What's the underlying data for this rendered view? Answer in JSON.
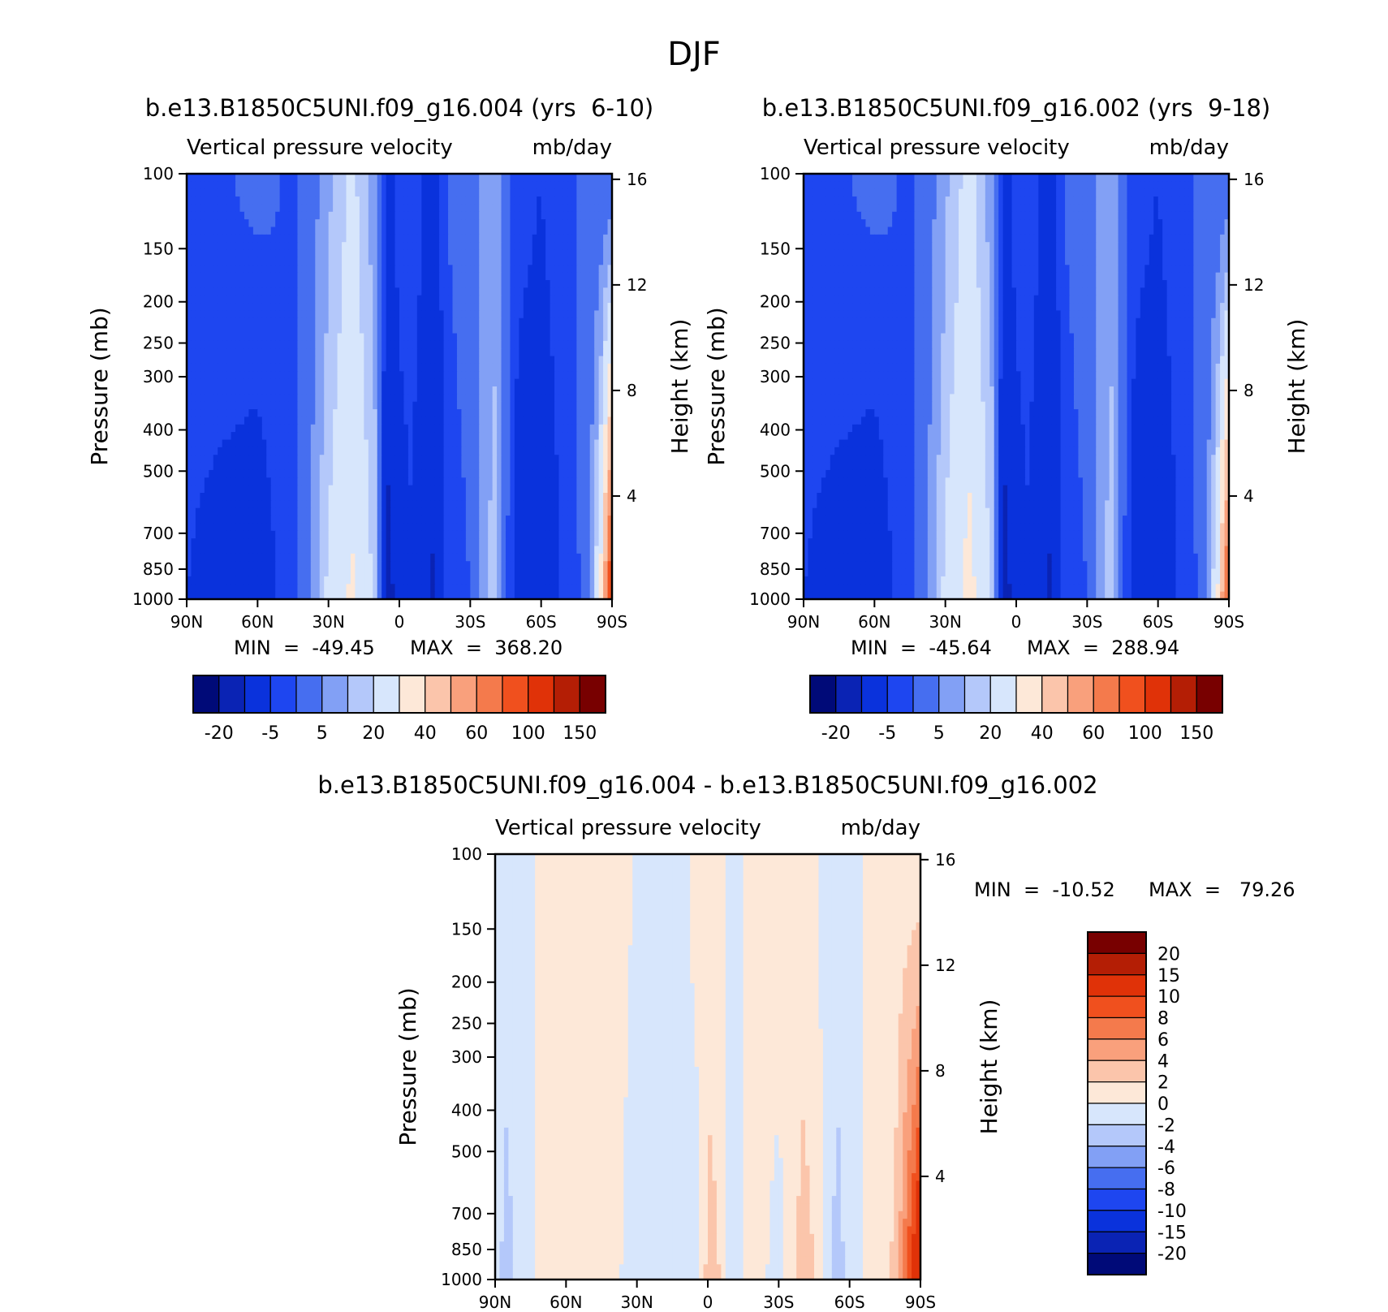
{
  "title": "DJF",
  "colors": {
    "main_palette": [
      "#000a78",
      "#0a23b4",
      "#0a32dc",
      "#1e46f0",
      "#466ef0",
      "#82a0f5",
      "#b4c8fa",
      "#d7e6fc",
      "#fde8d8",
      "#fbc5ab",
      "#f9a07c",
      "#f47a4c",
      "#f0501e",
      "#e03208",
      "#b41e05",
      "#780000"
    ],
    "diff_palette": [
      "#000a78",
      "#0a23b4",
      "#0a32dc",
      "#1e46f0",
      "#466ef0",
      "#82a0f5",
      "#b4c8fa",
      "#d7e6fc",
      "#fde8d8",
      "#fbc5ab",
      "#f9a07c",
      "#f47a4c",
      "#f0501e",
      "#e03208",
      "#b41e05",
      "#780000"
    ]
  },
  "chart_data": [
    {
      "id": "panel-a",
      "type": "heatmap",
      "title": "b.e13.B1850C5UNI.f09_g16.004 (yrs  6-10)",
      "subtitle_left": "Vertical pressure velocity",
      "subtitle_right": "mb/day",
      "ylabel": "Pressure (mb)",
      "ylabel_right": "Height (km)",
      "x_ticks": [
        "90N",
        "60N",
        "30N",
        "0",
        "30S",
        "60S",
        "90S"
      ],
      "x_values": [
        90,
        60,
        30,
        0,
        -30,
        -60,
        -90
      ],
      "y_ticks": [
        100,
        150,
        200,
        250,
        300,
        400,
        500,
        700,
        850,
        1000
      ],
      "y_right_ticks": [
        4,
        8,
        12,
        16
      ],
      "ylim": [
        1000,
        100
      ],
      "y_scale": "log",
      "min_label": "MIN  =  -49.45",
      "max_label": "MAX  =  368.20",
      "colorbar_labels": [
        "-20",
        "-5",
        "5",
        "20",
        "40",
        "60",
        "100",
        "150"
      ],
      "colorbar_levels": 16,
      "profile_lat": [
        90,
        80,
        70,
        60,
        50,
        40,
        30,
        20,
        10,
        5,
        0,
        -5,
        -10,
        -15,
        -20,
        -30,
        -40,
        -50,
        -60,
        -70,
        -80,
        -85,
        -90
      ],
      "profile_lower": [
        -10,
        -12,
        -15,
        -18,
        -8,
        -3,
        12,
        22,
        8,
        -25,
        -15,
        -12,
        -18,
        -22,
        -8,
        -5,
        8,
        -15,
        -20,
        -8,
        -3,
        20,
        80
      ],
      "profile_upper": [
        -8,
        -7,
        -5,
        -4,
        -5,
        -5,
        4,
        12,
        2,
        -12,
        -8,
        -6,
        -10,
        -14,
        -5,
        -3,
        4,
        -8,
        -10,
        -6,
        -4,
        -3,
        -3
      ]
    },
    {
      "id": "panel-b",
      "type": "heatmap",
      "title": "b.e13.B1850C5UNI.f09_g16.002 (yrs  9-18)",
      "subtitle_left": "Vertical pressure velocity",
      "subtitle_right": "mb/day",
      "ylabel": "Pressure (mb)",
      "ylabel_right": "Height (km)",
      "x_ticks": [
        "90N",
        "60N",
        "30N",
        "0",
        "30S",
        "60S",
        "90S"
      ],
      "x_values": [
        90,
        60,
        30,
        0,
        -30,
        -60,
        -90
      ],
      "y_ticks": [
        100,
        150,
        200,
        250,
        300,
        400,
        500,
        700,
        850,
        1000
      ],
      "y_right_ticks": [
        4,
        8,
        12,
        16
      ],
      "ylim": [
        1000,
        100
      ],
      "y_scale": "log",
      "min_label": "MIN  =  -45.64",
      "max_label": "MAX  =  288.94",
      "colorbar_labels": [
        "-20",
        "-5",
        "5",
        "20",
        "40",
        "60",
        "100",
        "150"
      ],
      "colorbar_levels": 16,
      "profile_lat": [
        90,
        80,
        70,
        60,
        50,
        40,
        30,
        20,
        10,
        5,
        0,
        -5,
        -10,
        -15,
        -20,
        -30,
        -40,
        -50,
        -60,
        -70,
        -80,
        -85,
        -90
      ],
      "profile_lower": [
        -10,
        -12,
        -15,
        -18,
        -8,
        -3,
        12,
        24,
        9,
        -25,
        -15,
        -12,
        -18,
        -22,
        -8,
        -5,
        8,
        -15,
        -20,
        -8,
        -3,
        18,
        70
      ],
      "profile_upper": [
        -8,
        -7,
        -5,
        -4,
        -5,
        -5,
        4,
        13,
        2,
        -12,
        -8,
        -6,
        -10,
        -14,
        -5,
        -3,
        4,
        -8,
        -10,
        -6,
        -4,
        -3,
        -3
      ]
    },
    {
      "id": "panel-diff",
      "type": "heatmap",
      "title": "b.e13.B1850C5UNI.f09_g16.004 - b.e13.B1850C5UNI.f09_g16.002",
      "subtitle_left": "Vertical pressure velocity",
      "subtitle_right": "mb/day",
      "ylabel": "Pressure (mb)",
      "ylabel_right": "Height (km)",
      "x_ticks": [
        "90N",
        "60N",
        "30N",
        "0",
        "30S",
        "60S",
        "90S"
      ],
      "x_values": [
        90,
        60,
        30,
        0,
        -30,
        -60,
        -90
      ],
      "y_ticks": [
        100,
        150,
        200,
        250,
        300,
        400,
        500,
        700,
        850,
        1000
      ],
      "y_right_ticks": [
        4,
        8,
        12,
        16
      ],
      "ylim": [
        1000,
        100
      ],
      "y_scale": "log",
      "min_label": "MIN  =  -10.52",
      "max_label": "MAX  =   79.26",
      "colorbar_labels": [
        "20",
        "15",
        "10",
        "8",
        "6",
        "4",
        "2",
        "0",
        "-2",
        "-4",
        "-6",
        "-8",
        "-10",
        "-15",
        "-20"
      ],
      "colorbar_levels": 16,
      "profile_lat": [
        90,
        85,
        80,
        75,
        70,
        60,
        55,
        50,
        45,
        40,
        35,
        30,
        25,
        20,
        10,
        5,
        0,
        -5,
        -10,
        -20,
        -30,
        -40,
        -45,
        -50,
        -55,
        -60,
        -70,
        -75,
        -80,
        -85,
        -90
      ],
      "profile_lower": [
        -1,
        -3,
        -1,
        -1,
        1,
        1,
        2,
        1,
        1,
        2,
        -1,
        -1,
        -1,
        -1,
        -1,
        -2,
        3,
        2,
        -1,
        1,
        -1,
        3,
        2,
        -1,
        -3,
        -1,
        1,
        1,
        3,
        9,
        15
      ],
      "profile_upper": [
        -1,
        -1,
        -1,
        -1,
        1,
        1,
        1,
        1,
        1,
        1,
        1,
        -1,
        -1,
        -1,
        -1,
        1,
        1,
        1,
        -1,
        1,
        1,
        1,
        1,
        -1,
        -1,
        -1,
        1,
        1,
        1,
        1,
        1
      ]
    }
  ]
}
